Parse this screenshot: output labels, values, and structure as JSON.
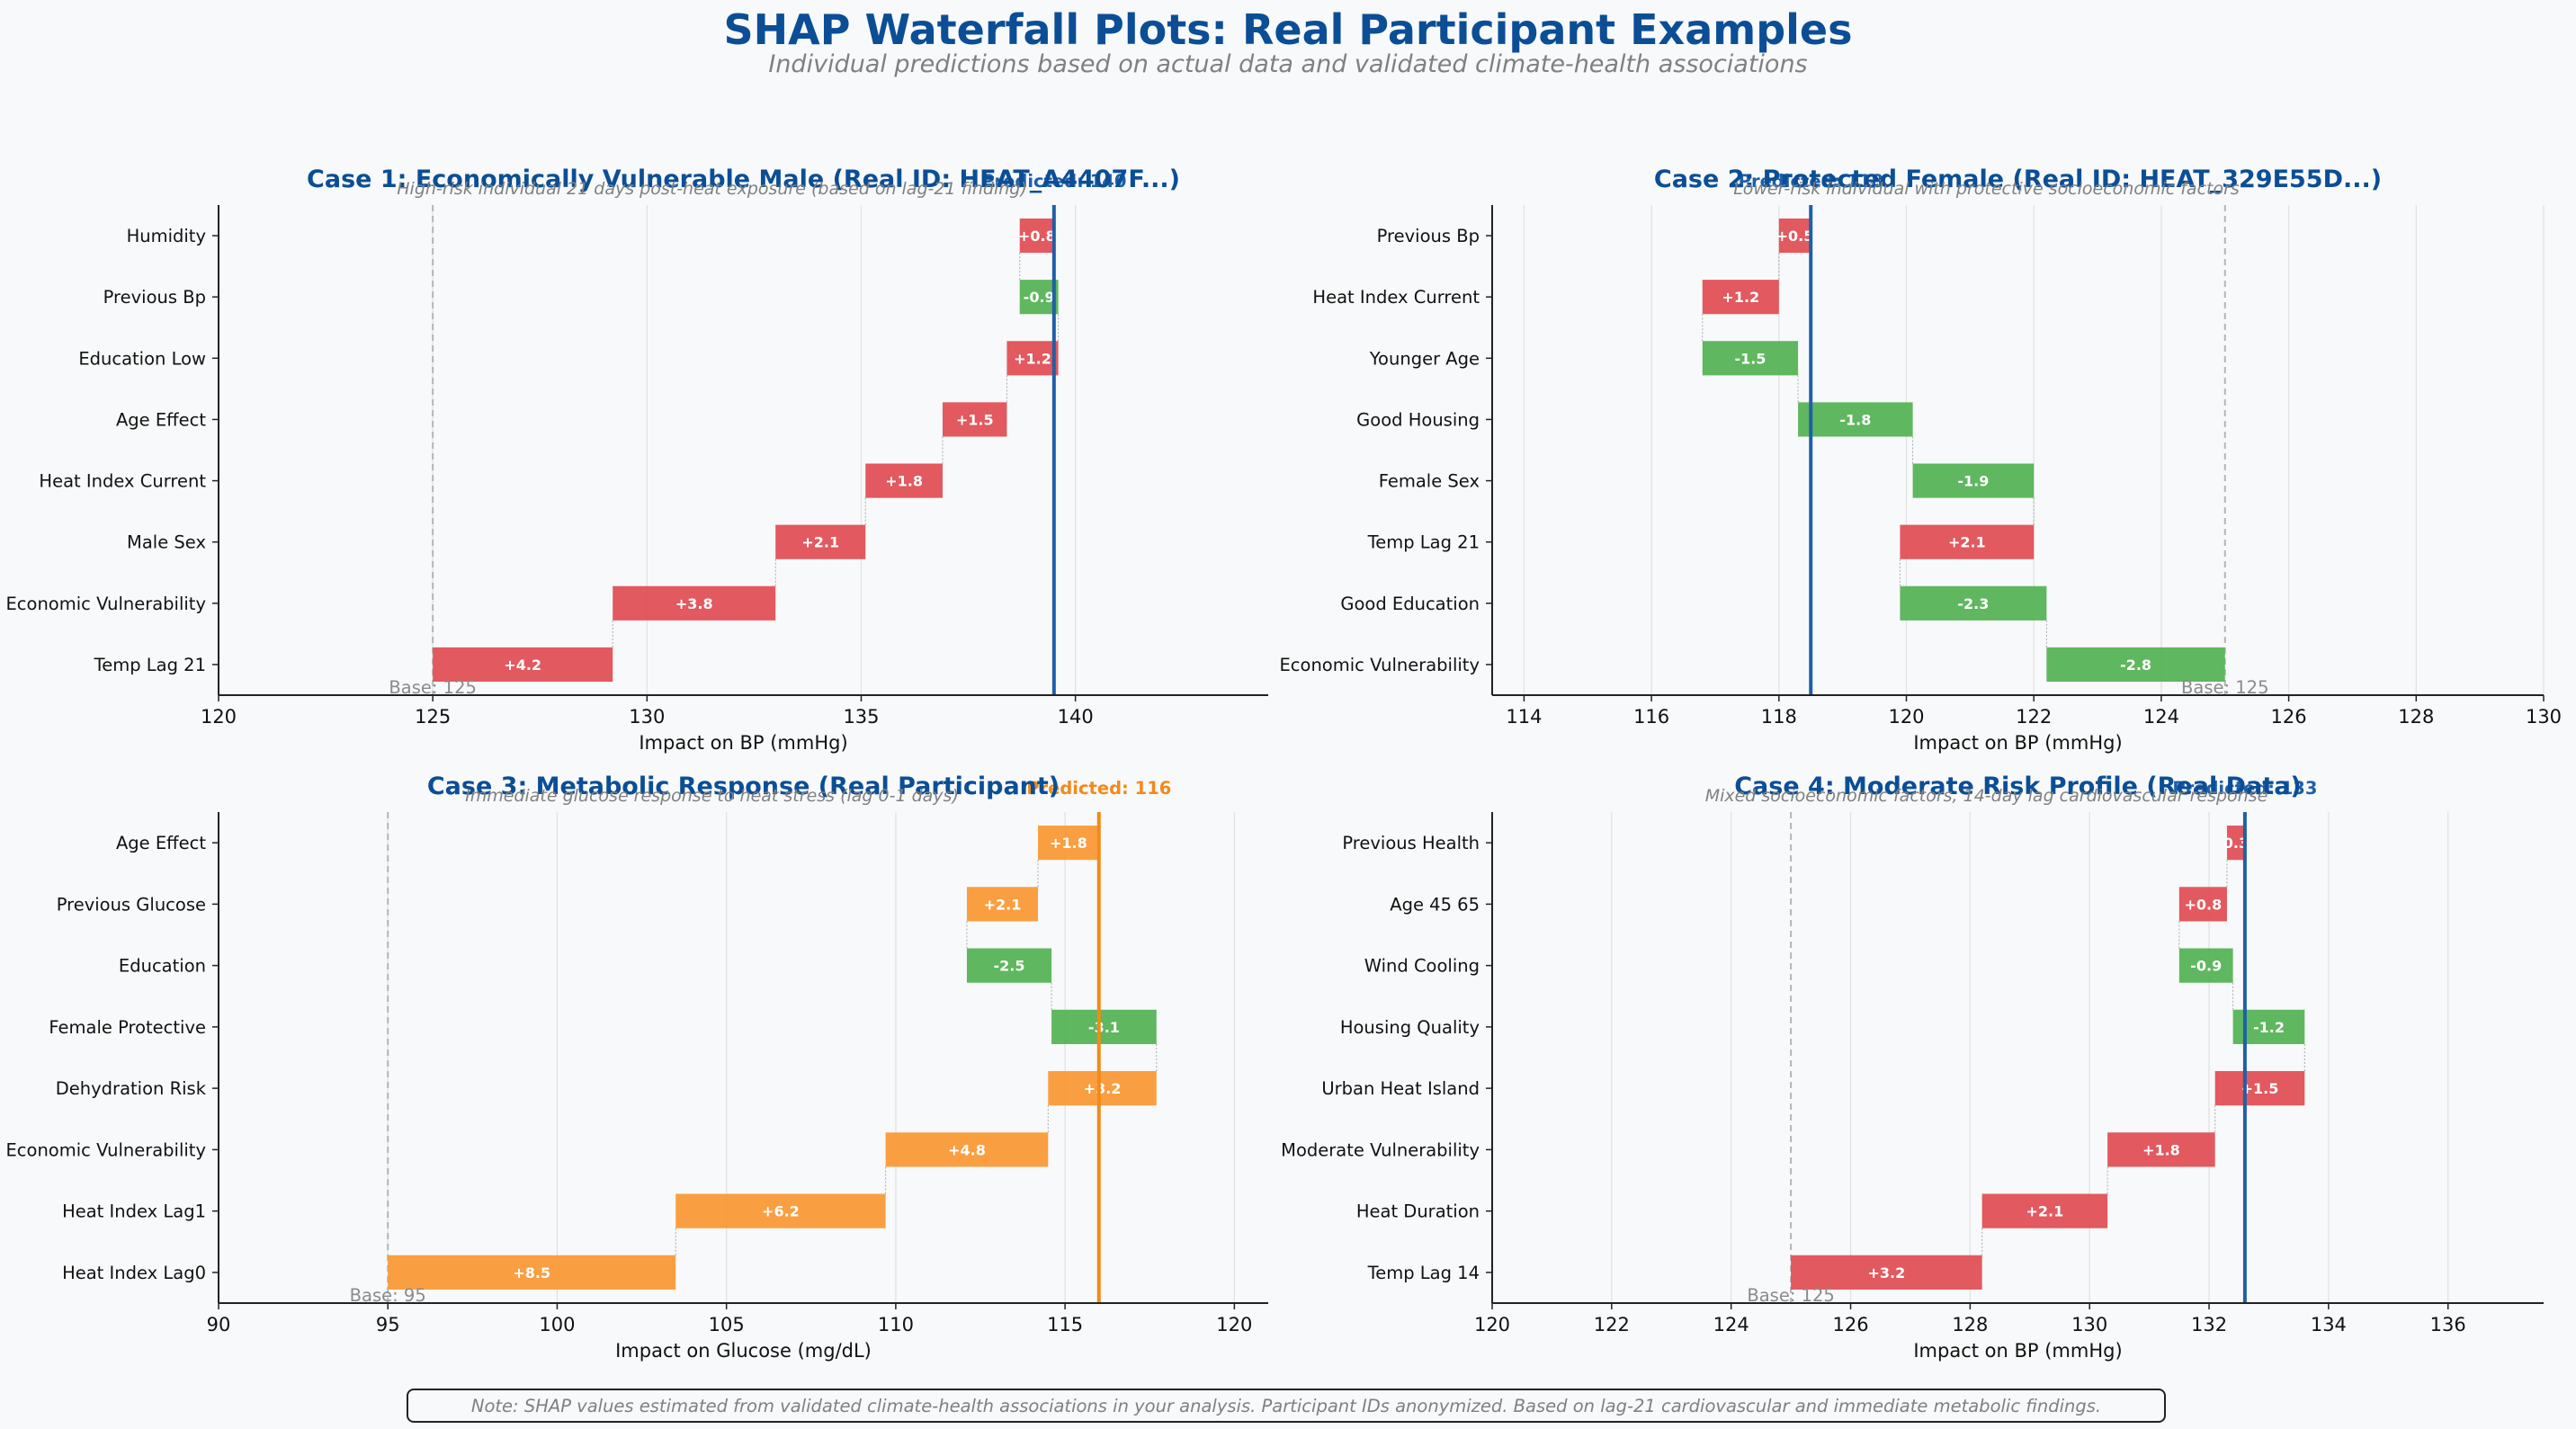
{
  "header": {
    "title": "SHAP Waterfall Plots: Real Participant Examples",
    "subtitle": "Individual predictions based on actual data and validated climate-health associations"
  },
  "footnote": "Note: SHAP values estimated from validated climate-health associations in your analysis. Participant IDs anonymized. Based on lag-21 cardiovascular and immediate metabolic findings.",
  "colors": {
    "increase_bp": "#e05056",
    "increase_glucose": "#f99a38",
    "decrease": "#56b356",
    "prediction_bp": "#1f5fa8",
    "prediction_glucose": "#f28a1a",
    "title": "#0b4e96"
  },
  "chart_data": [
    {
      "type": "bar",
      "title": "Case 1: Economically Vulnerable Male (Real ID: HEAT_A4407F...)",
      "subtitle": "High-risk individual 21 days post-heat exposure (based on lag-21 finding)",
      "xlabel": "Impact on BP (mmHg)",
      "xlim": [
        120,
        144.5
      ],
      "xticks": [
        120,
        125,
        130,
        135,
        140
      ],
      "base": 125,
      "base_label": "Base: 125",
      "predicted": 139.5,
      "predicted_label": "Predicted: 140",
      "increase_color_key": "increase_bp",
      "prediction_color_key": "prediction_bp",
      "features": [
        {
          "name": "Temp Lag 21",
          "value": 4.2,
          "label": "+4.2"
        },
        {
          "name": "Economic Vulnerability",
          "value": 3.8,
          "label": "+3.8"
        },
        {
          "name": "Male Sex",
          "value": 2.1,
          "label": "+2.1"
        },
        {
          "name": "Heat Index Current",
          "value": 1.8,
          "label": "+1.8"
        },
        {
          "name": "Age Effect",
          "value": 1.5,
          "label": "+1.5"
        },
        {
          "name": "Education Low",
          "value": 1.2,
          "label": "+1.2"
        },
        {
          "name": "Previous Bp",
          "value": -0.9,
          "label": "-0.9"
        },
        {
          "name": "Humidity",
          "value": 0.8,
          "label": "+0.8"
        }
      ]
    },
    {
      "type": "bar",
      "title": "Case 2: Protected Female (Real ID: HEAT_329E55D...)",
      "subtitle": "Lower-risk individual with protective socioeconomic factors",
      "xlabel": "Impact on BP (mmHg)",
      "xlim": [
        113.5,
        130
      ],
      "xticks": [
        114,
        116,
        118,
        120,
        122,
        124,
        126,
        128,
        130
      ],
      "base": 125,
      "base_label": "Base: 125",
      "predicted": 118.5,
      "predicted_label": "Predicted: 118",
      "increase_color_key": "increase_bp",
      "prediction_color_key": "prediction_bp",
      "features": [
        {
          "name": "Economic Vulnerability",
          "value": -2.8,
          "label": "-2.8"
        },
        {
          "name": "Good Education",
          "value": -2.3,
          "label": "-2.3"
        },
        {
          "name": "Temp Lag 21",
          "value": 2.1,
          "label": "+2.1"
        },
        {
          "name": "Female Sex",
          "value": -1.9,
          "label": "-1.9"
        },
        {
          "name": "Good Housing",
          "value": -1.8,
          "label": "-1.8"
        },
        {
          "name": "Younger Age",
          "value": -1.5,
          "label": "-1.5"
        },
        {
          "name": "Heat Index Current",
          "value": 1.2,
          "label": "+1.2"
        },
        {
          "name": "Previous Bp",
          "value": 0.5,
          "label": "+0.5"
        }
      ]
    },
    {
      "type": "bar",
      "title": "Case 3: Metabolic Response (Real Participant)",
      "subtitle": "Immediate glucose response to heat stress (lag 0-1 days)",
      "xlabel": "Impact on Glucose (mg/dL)",
      "xlim": [
        90,
        121
      ],
      "xticks": [
        90,
        95,
        100,
        105,
        110,
        115,
        120
      ],
      "base": 95,
      "base_label": "Base: 95",
      "predicted": 116,
      "predicted_label": "Predicted: 116",
      "increase_color_key": "increase_glucose",
      "prediction_color_key": "prediction_glucose",
      "features": [
        {
          "name": "Heat Index Lag0",
          "value": 8.5,
          "label": "+8.5"
        },
        {
          "name": "Heat Index Lag1",
          "value": 6.2,
          "label": "+6.2"
        },
        {
          "name": "Economic Vulnerability",
          "value": 4.8,
          "label": "+4.8"
        },
        {
          "name": "Dehydration Risk",
          "value": 3.2,
          "label": "+3.2"
        },
        {
          "name": "Female Protective",
          "value": -3.1,
          "label": "-3.1"
        },
        {
          "name": "Education",
          "value": -2.5,
          "label": "-2.5"
        },
        {
          "name": "Previous Glucose",
          "value": 2.1,
          "label": "+2.1"
        },
        {
          "name": "Age Effect",
          "value": 1.8,
          "label": "+1.8"
        }
      ]
    },
    {
      "type": "bar",
      "title": "Case 4: Moderate Risk Profile (Real Data)",
      "subtitle": "Mixed socioeconomic factors, 14-day lag cardiovascular response",
      "xlabel": "Impact on BP (mmHg)",
      "xlim": [
        120,
        137.6
      ],
      "xticks": [
        120,
        122,
        124,
        126,
        128,
        130,
        132,
        134,
        136
      ],
      "base": 125,
      "base_label": "Base: 125",
      "predicted": 132.6,
      "predicted_label": "Predicted: 133",
      "increase_color_key": "increase_bp",
      "prediction_color_key": "prediction_bp",
      "features": [
        {
          "name": "Temp Lag 14",
          "value": 3.2,
          "label": "+3.2"
        },
        {
          "name": "Heat Duration",
          "value": 2.1,
          "label": "+2.1"
        },
        {
          "name": "Moderate Vulnerability",
          "value": 1.8,
          "label": "+1.8"
        },
        {
          "name": "Urban Heat Island",
          "value": 1.5,
          "label": "+1.5"
        },
        {
          "name": "Housing Quality",
          "value": -1.2,
          "label": "-1.2"
        },
        {
          "name": "Wind Cooling",
          "value": -0.9,
          "label": "-0.9"
        },
        {
          "name": "Age 45 65",
          "value": 0.8,
          "label": "+0.8"
        },
        {
          "name": "Previous Health",
          "value": 0.3,
          "label": "0.3"
        }
      ]
    }
  ]
}
